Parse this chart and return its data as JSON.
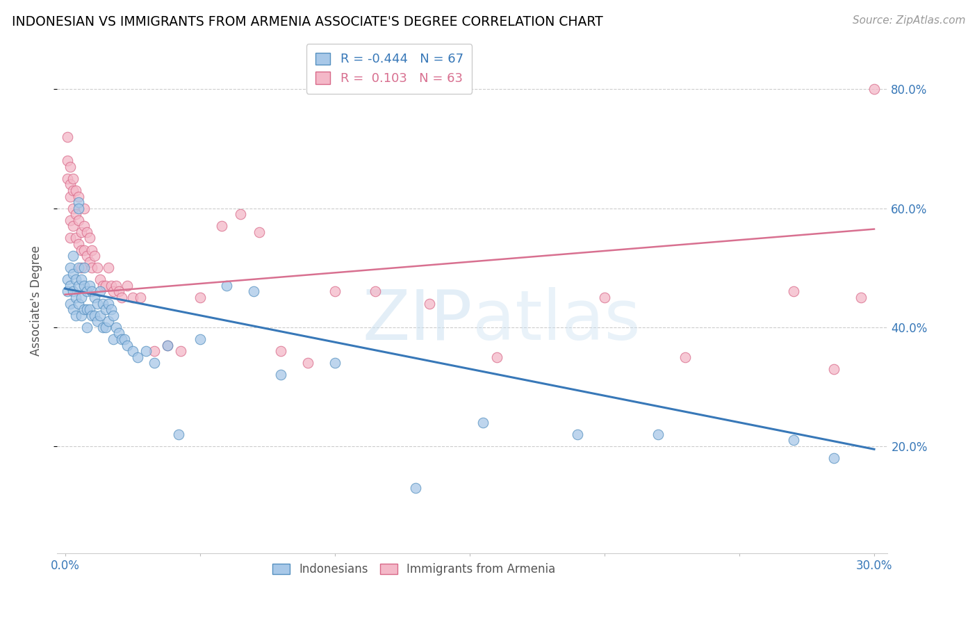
{
  "title": "INDONESIAN VS IMMIGRANTS FROM ARMENIA ASSOCIATE'S DEGREE CORRELATION CHART",
  "source": "Source: ZipAtlas.com",
  "ylabel": "Associate's Degree",
  "yticks": [
    0.2,
    0.4,
    0.6,
    0.8
  ],
  "ytick_labels": [
    "20.0%",
    "40.0%",
    "60.0%",
    "80.0%"
  ],
  "xticks": [
    0.0,
    0.05,
    0.1,
    0.15,
    0.2,
    0.25,
    0.3
  ],
  "xtick_labels": [
    "0.0%",
    "",
    "",
    "",
    "",
    "",
    "30.0%"
  ],
  "xlim": [
    -0.003,
    0.305
  ],
  "ylim": [
    0.02,
    0.87
  ],
  "blue_R": "-0.444",
  "blue_N": "67",
  "pink_R": "0.103",
  "pink_N": "63",
  "blue_color": "#a8c8e8",
  "pink_color": "#f4b8c8",
  "blue_edge_color": "#5590c0",
  "pink_edge_color": "#d86888",
  "blue_line_color": "#3878b8",
  "pink_line_color": "#d87090",
  "watermark_color": "#c8dff0",
  "legend_labels": [
    "Indonesians",
    "Immigrants from Armenia"
  ],
  "blue_scatter_x": [
    0.001,
    0.001,
    0.002,
    0.002,
    0.002,
    0.003,
    0.003,
    0.003,
    0.003,
    0.004,
    0.004,
    0.004,
    0.005,
    0.005,
    0.005,
    0.005,
    0.005,
    0.006,
    0.006,
    0.006,
    0.007,
    0.007,
    0.007,
    0.008,
    0.008,
    0.008,
    0.009,
    0.009,
    0.01,
    0.01,
    0.011,
    0.011,
    0.012,
    0.012,
    0.013,
    0.013,
    0.014,
    0.014,
    0.015,
    0.015,
    0.016,
    0.016,
    0.017,
    0.018,
    0.018,
    0.019,
    0.02,
    0.021,
    0.022,
    0.023,
    0.025,
    0.027,
    0.03,
    0.033,
    0.038,
    0.042,
    0.05,
    0.06,
    0.07,
    0.08,
    0.1,
    0.13,
    0.155,
    0.19,
    0.22,
    0.27,
    0.285
  ],
  "blue_scatter_y": [
    0.48,
    0.46,
    0.5,
    0.47,
    0.44,
    0.52,
    0.49,
    0.46,
    0.43,
    0.48,
    0.45,
    0.42,
    0.5,
    0.47,
    0.44,
    0.61,
    0.6,
    0.48,
    0.45,
    0.42,
    0.5,
    0.47,
    0.43,
    0.46,
    0.43,
    0.4,
    0.47,
    0.43,
    0.46,
    0.42,
    0.45,
    0.42,
    0.44,
    0.41,
    0.46,
    0.42,
    0.44,
    0.4,
    0.43,
    0.4,
    0.44,
    0.41,
    0.43,
    0.42,
    0.38,
    0.4,
    0.39,
    0.38,
    0.38,
    0.37,
    0.36,
    0.35,
    0.36,
    0.34,
    0.37,
    0.22,
    0.38,
    0.47,
    0.46,
    0.32,
    0.34,
    0.13,
    0.24,
    0.22,
    0.22,
    0.21,
    0.18
  ],
  "pink_scatter_x": [
    0.001,
    0.001,
    0.001,
    0.002,
    0.002,
    0.002,
    0.002,
    0.002,
    0.003,
    0.003,
    0.003,
    0.003,
    0.004,
    0.004,
    0.004,
    0.005,
    0.005,
    0.005,
    0.006,
    0.006,
    0.006,
    0.007,
    0.007,
    0.007,
    0.008,
    0.008,
    0.009,
    0.009,
    0.01,
    0.01,
    0.011,
    0.012,
    0.013,
    0.014,
    0.015,
    0.016,
    0.017,
    0.018,
    0.019,
    0.02,
    0.021,
    0.023,
    0.025,
    0.028,
    0.033,
    0.038,
    0.043,
    0.05,
    0.058,
    0.065,
    0.072,
    0.08,
    0.09,
    0.1,
    0.115,
    0.135,
    0.16,
    0.2,
    0.23,
    0.27,
    0.285,
    0.295,
    0.3
  ],
  "pink_scatter_y": [
    0.72,
    0.68,
    0.65,
    0.67,
    0.64,
    0.62,
    0.58,
    0.55,
    0.65,
    0.63,
    0.6,
    0.57,
    0.63,
    0.59,
    0.55,
    0.62,
    0.58,
    0.54,
    0.56,
    0.53,
    0.5,
    0.6,
    0.57,
    0.53,
    0.56,
    0.52,
    0.55,
    0.51,
    0.53,
    0.5,
    0.52,
    0.5,
    0.48,
    0.47,
    0.47,
    0.5,
    0.47,
    0.46,
    0.47,
    0.46,
    0.45,
    0.47,
    0.45,
    0.45,
    0.36,
    0.37,
    0.36,
    0.45,
    0.57,
    0.59,
    0.56,
    0.36,
    0.34,
    0.46,
    0.46,
    0.44,
    0.35,
    0.45,
    0.35,
    0.46,
    0.33,
    0.45,
    0.8
  ],
  "blue_trend_x": [
    0.0,
    0.3
  ],
  "blue_trend_y": [
    0.465,
    0.195
  ],
  "pink_trend_x": [
    0.0,
    0.3
  ],
  "pink_trend_y": [
    0.455,
    0.565
  ]
}
